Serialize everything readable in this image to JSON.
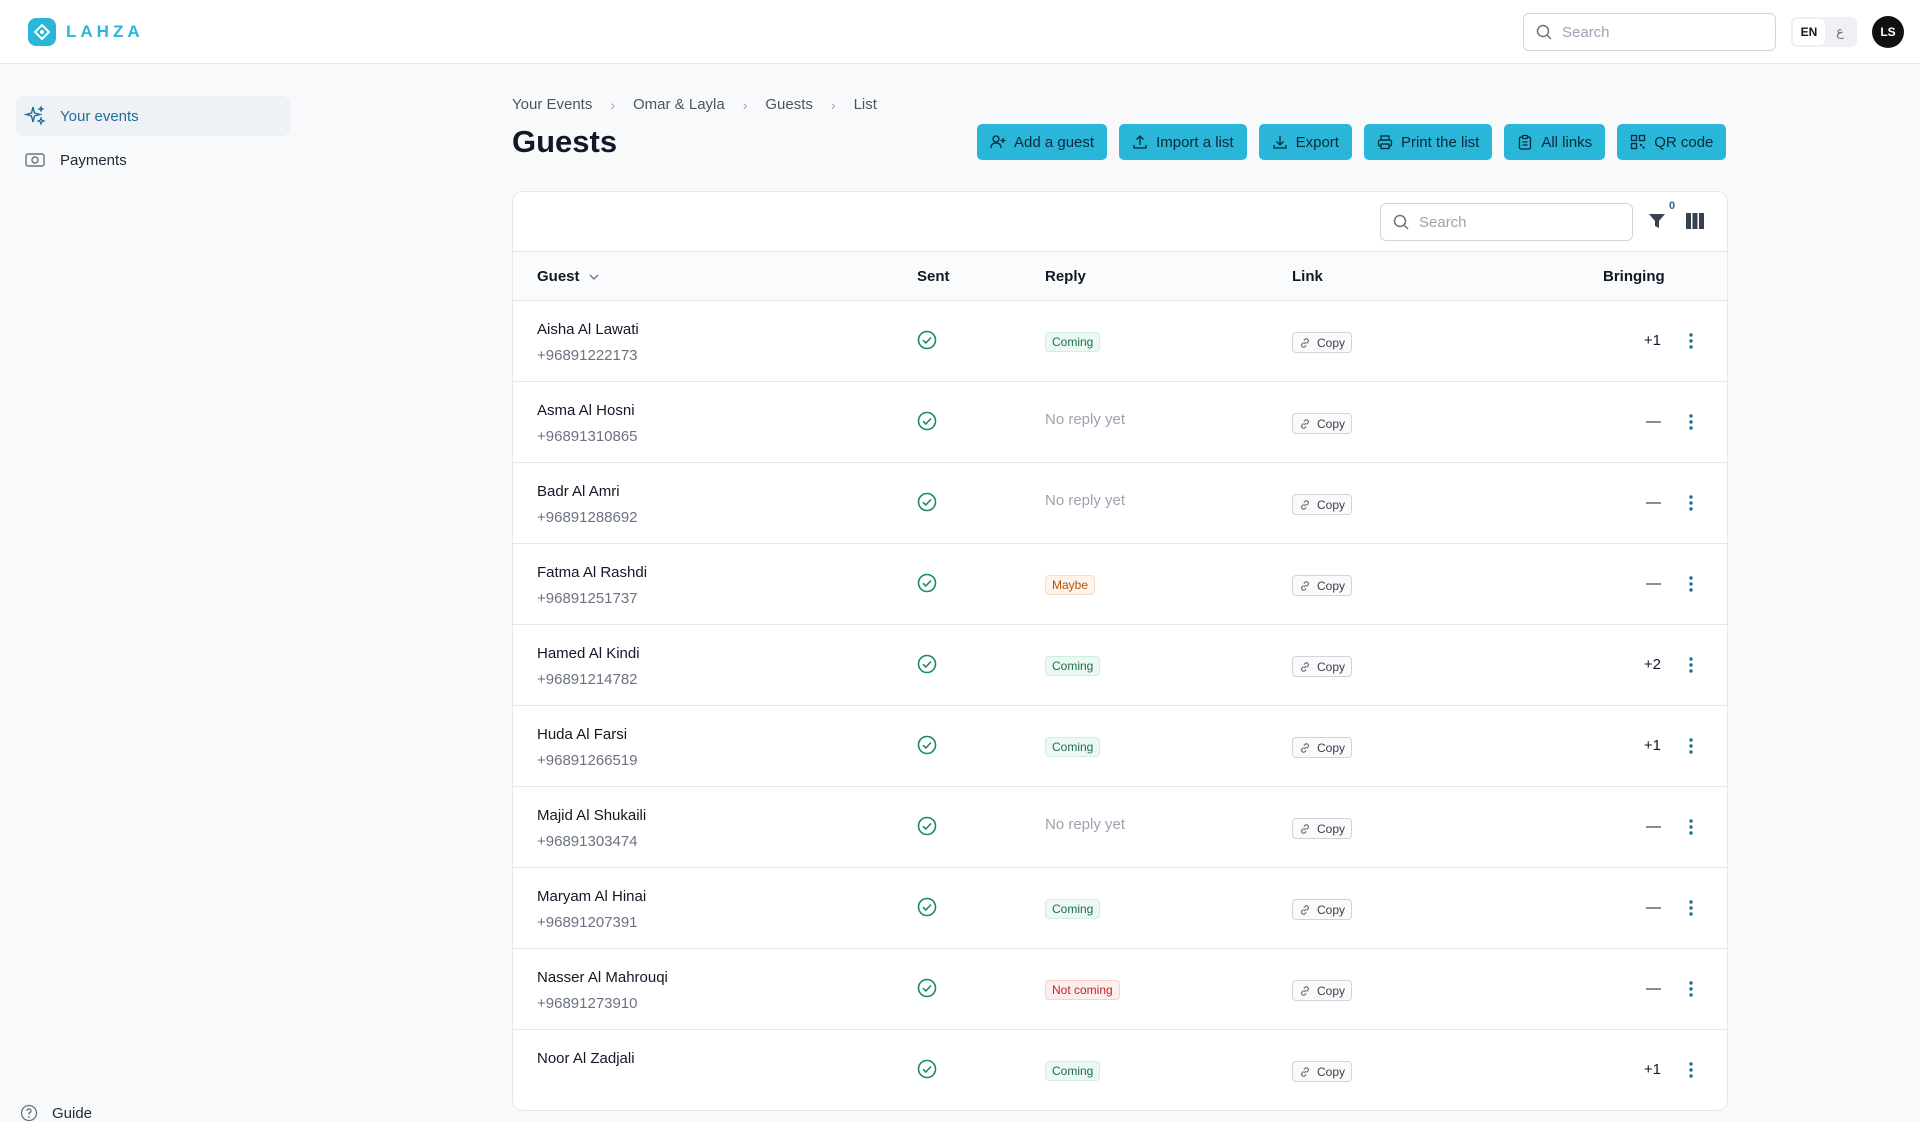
{
  "brand": {
    "name": "LAHZA"
  },
  "header": {
    "search_placeholder": "Search",
    "lang_active": "EN",
    "lang_other": "ع",
    "avatar_initials": "LS"
  },
  "sidebar": {
    "items": [
      {
        "label": "Your events",
        "icon": "sparkles-icon",
        "active": true
      },
      {
        "label": "Payments",
        "icon": "money-icon",
        "active": false
      }
    ],
    "guide_label": "Guide"
  },
  "breadcrumb": [
    "Your Events",
    "Omar & Layla",
    "Guests",
    "List"
  ],
  "page": {
    "title": "Guests"
  },
  "actions": [
    "Add a guest",
    "Import a list",
    "Export",
    "Print the list",
    "All links",
    "QR code"
  ],
  "table": {
    "search_placeholder": "Search",
    "filter_count": "0",
    "columns": {
      "guest": "Guest",
      "sent": "Sent",
      "reply": "Reply",
      "link": "Link",
      "bringing": "Bringing"
    },
    "copy_label": "Copy",
    "rows": [
      {
        "name": "Aisha Al Lawati",
        "phone": "+96891222173",
        "reply": "Coming",
        "reply_type": "coming",
        "bringing": "+1"
      },
      {
        "name": "Asma Al Hosni",
        "phone": "+96891310865",
        "reply": "No reply yet",
        "reply_type": "none",
        "bringing": "—"
      },
      {
        "name": "Badr Al Amri",
        "phone": "+96891288692",
        "reply": "No reply yet",
        "reply_type": "none",
        "bringing": "—"
      },
      {
        "name": "Fatma Al Rashdi",
        "phone": "+96891251737",
        "reply": "Maybe",
        "reply_type": "maybe",
        "bringing": "—"
      },
      {
        "name": "Hamed Al Kindi",
        "phone": "+96891214782",
        "reply": "Coming",
        "reply_type": "coming",
        "bringing": "+2"
      },
      {
        "name": "Huda Al Farsi",
        "phone": "+96891266519",
        "reply": "Coming",
        "reply_type": "coming",
        "bringing": "+1"
      },
      {
        "name": "Majid Al Shukaili",
        "phone": "+96891303474",
        "reply": "No reply yet",
        "reply_type": "none",
        "bringing": "—"
      },
      {
        "name": "Maryam Al Hinai",
        "phone": "+96891207391",
        "reply": "Coming",
        "reply_type": "coming",
        "bringing": "—"
      },
      {
        "name": "Nasser Al Mahrouqi",
        "phone": "+96891273910",
        "reply": "Not coming",
        "reply_type": "not",
        "bringing": "—"
      },
      {
        "name": "Noor Al Zadjali",
        "phone": "",
        "reply": "Coming",
        "reply_type": "coming",
        "bringing": "+1"
      }
    ]
  },
  "colors": {
    "accent": "#29b6d9",
    "active_text": "#1e6e95",
    "sent_check": "#1a8a62"
  }
}
